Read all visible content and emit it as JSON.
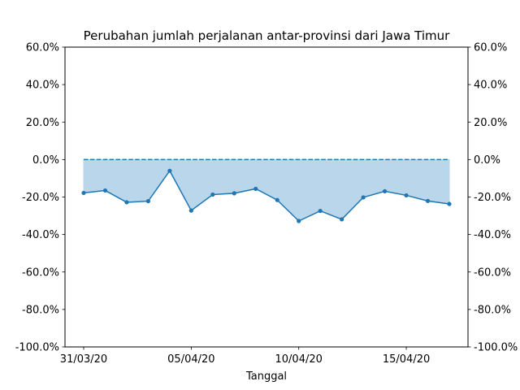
{
  "chart_data": {
    "type": "line",
    "title": "Perubahan jumlah perjalanan antar-provinsi dari Jawa Timur",
    "xlabel": "Tanggal",
    "ylabel": "",
    "ylim": [
      -100,
      60
    ],
    "y_ticks": [
      -100,
      -80,
      -60,
      -40,
      -20,
      0,
      20,
      40,
      60
    ],
    "y_tick_labels": [
      "-100.0%",
      "-80.0%",
      "-60.0%",
      "-40.0%",
      "-20.0%",
      "0.0%",
      "20.0%",
      "40.0%",
      "60.0%"
    ],
    "x": [
      "2020-03-31",
      "2020-04-01",
      "2020-04-02",
      "2020-04-03",
      "2020-04-04",
      "2020-04-05",
      "2020-04-06",
      "2020-04-07",
      "2020-04-08",
      "2020-04-09",
      "2020-04-10",
      "2020-04-11",
      "2020-04-12",
      "2020-04-13",
      "2020-04-14",
      "2020-04-15",
      "2020-04-16",
      "2020-04-17"
    ],
    "x_ticks": [
      "2020-03-31",
      "2020-04-05",
      "2020-04-10",
      "2020-04-15"
    ],
    "x_tick_labels": [
      "31/03/20",
      "05/04/20",
      "10/04/20",
      "15/04/20"
    ],
    "series": [
      {
        "values": [
          -17.8,
          -16.5,
          -22.8,
          -22.2,
          -6.0,
          -27.2,
          -18.7,
          -18.0,
          -15.6,
          -21.6,
          -32.8,
          -27.4,
          -31.9,
          -20.2,
          -16.9,
          -19.1,
          -22.1,
          -23.7
        ],
        "style": "solid-markers",
        "fill_to_baseline": true
      }
    ],
    "baseline": {
      "value": 0,
      "style": "dashed"
    },
    "grid": false,
    "right_axis_mirror": true,
    "colors": {
      "line": "#1f77b4",
      "fill": "#bad6ea",
      "axes": "#000000"
    }
  }
}
